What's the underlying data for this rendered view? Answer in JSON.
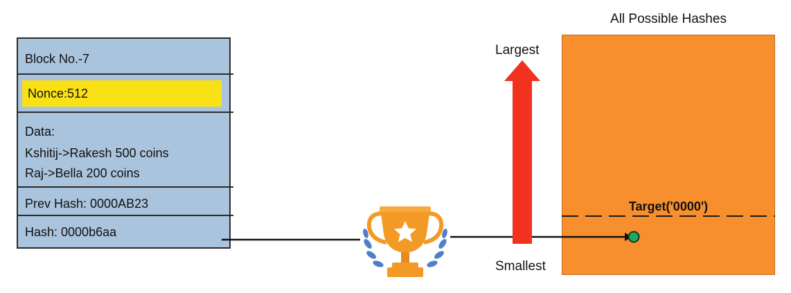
{
  "block": {
    "number": "Block No.-7",
    "nonce": "Nonce:512",
    "data_label": "Data:",
    "data_lines": [
      "Kshitij->Rakesh 500 coins",
      "Raj->Bella 200 coins"
    ],
    "prev_hash": "Prev Hash: 0000AB23",
    "hash": "Hash: 0000b6aa"
  },
  "hash_space": {
    "title": "All Possible Hashes",
    "target_label": "Target('0000')",
    "largest_label": "Largest",
    "smallest_label": "Smallest"
  },
  "icons": [
    "trophy-icon",
    "star-icon",
    "laurel-icon",
    "hash-point-marker"
  ],
  "colors": {
    "block_fill": "#a9c4dc",
    "nonce_highlight": "#f9e116",
    "panel_fill": "#f78f2e",
    "arrow_fill": "#f0321e",
    "trophy": "#f39a26",
    "laurel": "#4f7fc7",
    "hash_point": "#1fa860"
  }
}
